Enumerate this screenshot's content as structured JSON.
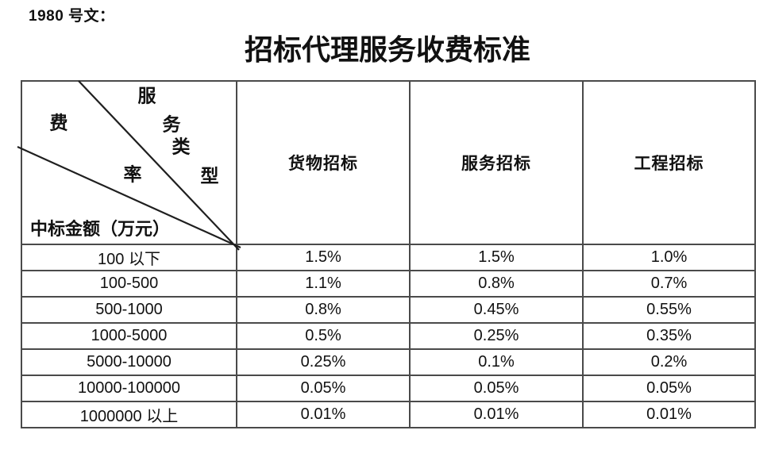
{
  "page": {
    "doc_ref": "1980 号文：",
    "title": "招标代理服务收费标准",
    "colors": {
      "background": "#ffffff",
      "text": "#111111",
      "table_border": "#4a4a4a",
      "diagonal_line": "#1f1f1f"
    }
  },
  "table": {
    "corner": {
      "service_type_chars": [
        "服",
        "务",
        "类",
        "型"
      ],
      "fee_rate_chars": [
        "费",
        "率"
      ],
      "amount_label": "中标金额（万元）"
    },
    "columns": [
      "货物招标",
      "服务招标",
      "工程招标"
    ],
    "rows": [
      {
        "range": "100 以下",
        "values": [
          "1.5%",
          "1.5%",
          "1.0%"
        ]
      },
      {
        "range": "100-500",
        "values": [
          "1.1%",
          "0.8%",
          "0.7%"
        ]
      },
      {
        "range": "500-1000",
        "values": [
          "0.8%",
          "0.45%",
          "0.55%"
        ]
      },
      {
        "range": "1000-5000",
        "values": [
          "0.5%",
          "0.25%",
          "0.35%"
        ]
      },
      {
        "range": "5000-10000",
        "values": [
          "0.25%",
          "0.1%",
          "0.2%"
        ]
      },
      {
        "range": "10000-100000",
        "values": [
          "0.05%",
          "0.05%",
          "0.05%"
        ]
      },
      {
        "range": "1000000 以上",
        "values": [
          "0.01%",
          "0.01%",
          "0.01%"
        ]
      }
    ]
  }
}
